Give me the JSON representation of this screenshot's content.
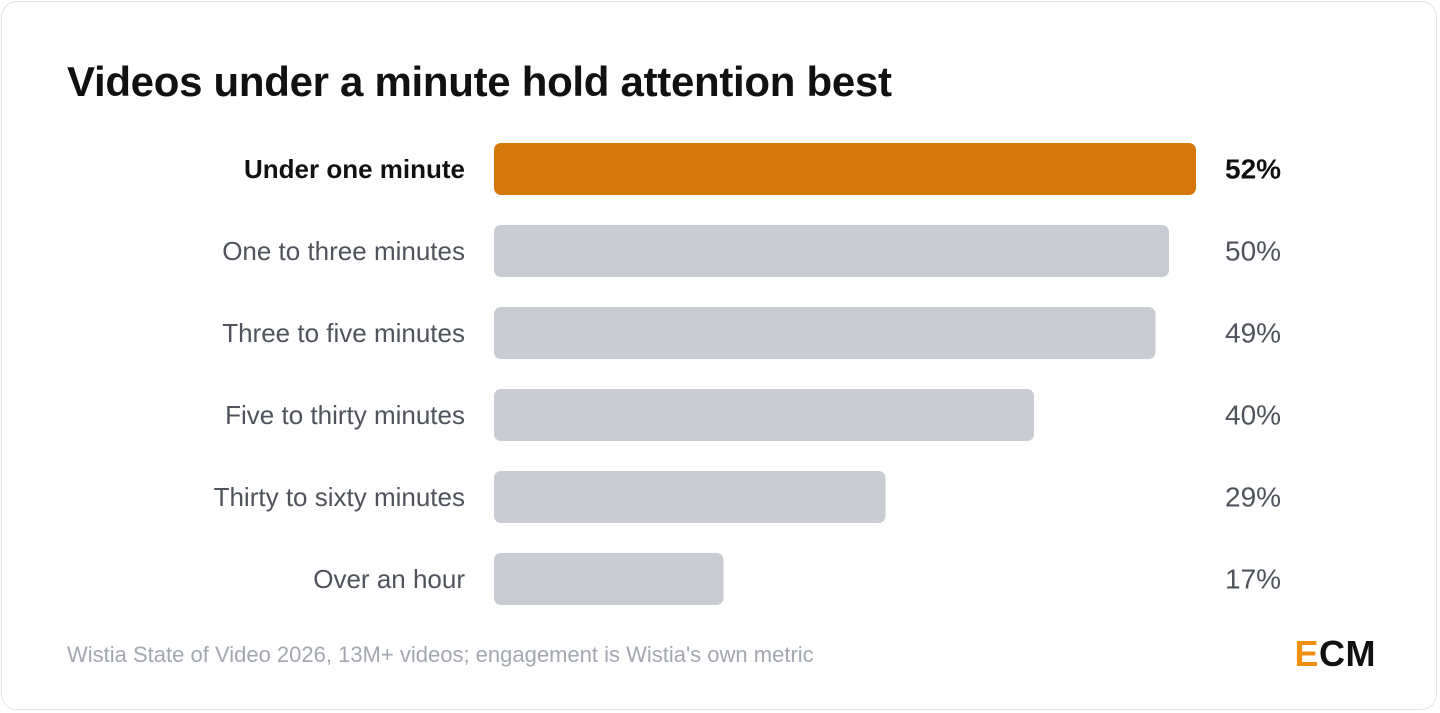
{
  "title": "Videos under a minute hold attention best",
  "footer": "Wistia State of Video 2026, 13M+ videos; engagement is Wistia's own metric",
  "logo": {
    "accent_letter": "E",
    "rest": "CM"
  },
  "colors": {
    "highlight": "#d4780c",
    "bar": "#caccd3",
    "label_highlight": "#111111",
    "label": "#4f545c",
    "logo_accent": "#f0900f"
  },
  "chart_data": {
    "type": "bar",
    "orientation": "horizontal",
    "categories": [
      "Under one minute",
      "One to three minutes",
      "Three to five minutes",
      "Five to thirty minutes",
      "Thirty to sixty minutes",
      "Over an hour"
    ],
    "values": [
      52,
      50,
      49,
      40,
      29,
      17
    ],
    "value_labels": [
      "52%",
      "50%",
      "49%",
      "40%",
      "29%",
      "17%"
    ],
    "highlight_index": 0,
    "xlim": [
      0,
      52
    ],
    "grid": false
  }
}
